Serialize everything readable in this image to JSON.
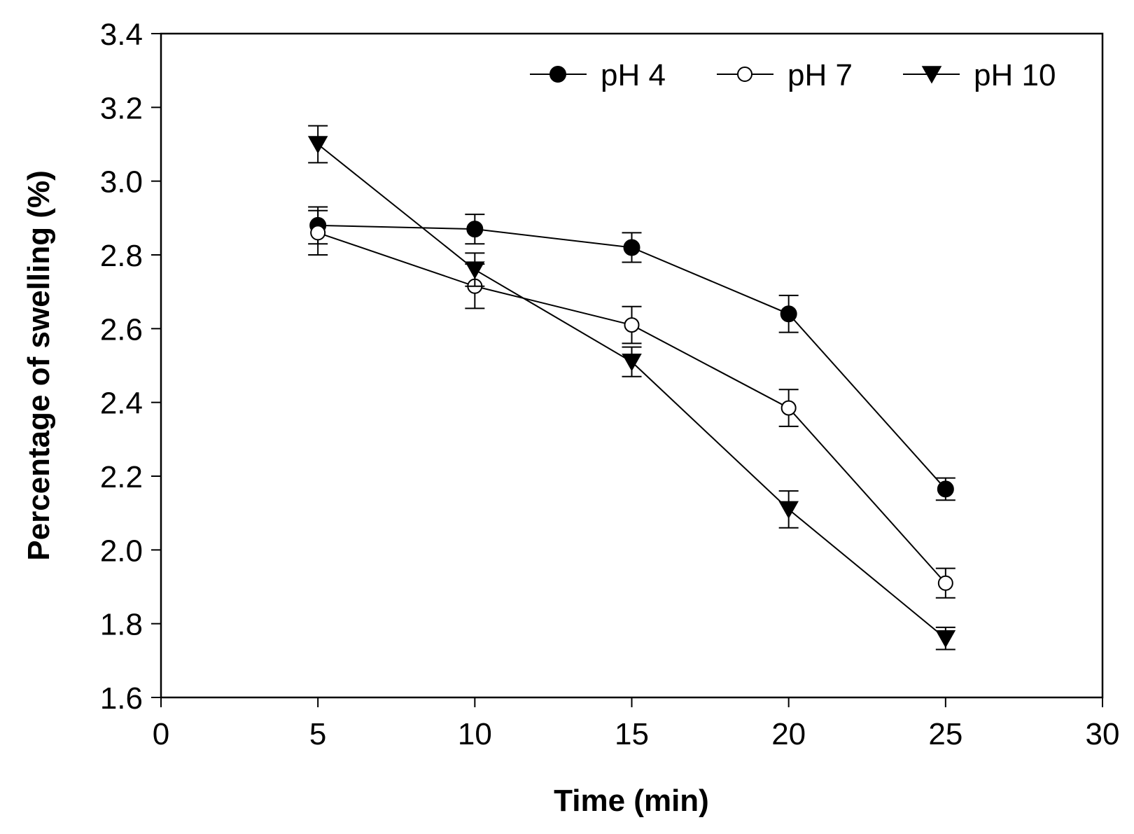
{
  "chart_data": {
    "type": "line",
    "title": "",
    "xlabel": "Time (min)",
    "ylabel": "Percentage of swelling (%)",
    "xlim": [
      0,
      30
    ],
    "ylim": [
      1.6,
      3.4
    ],
    "xticks": [
      "0",
      "5",
      "10",
      "15",
      "20",
      "25",
      "30"
    ],
    "yticks": [
      "1.6",
      "1.8",
      "2.0",
      "2.2",
      "2.4",
      "2.6",
      "2.8",
      "3.0",
      "3.2",
      "3.4"
    ],
    "grid": false,
    "legend_position": "top-right",
    "x": [
      5,
      10,
      15,
      20,
      25
    ],
    "series": [
      {
        "name": "pH 4",
        "marker": "filled-circle",
        "values": [
          2.88,
          2.87,
          2.82,
          2.64,
          2.165
        ],
        "errors": [
          0.05,
          0.04,
          0.04,
          0.05,
          0.03
        ]
      },
      {
        "name": "pH 7",
        "marker": "open-circle",
        "values": [
          2.86,
          2.715,
          2.61,
          2.385,
          1.91
        ],
        "errors": [
          0.06,
          0.06,
          0.05,
          0.05,
          0.04
        ]
      },
      {
        "name": "pH 10",
        "marker": "filled-triangle-down",
        "values": [
          3.1,
          2.76,
          2.51,
          2.11,
          1.76
        ],
        "errors": [
          0.05,
          0.045,
          0.04,
          0.05,
          0.03
        ]
      }
    ]
  }
}
